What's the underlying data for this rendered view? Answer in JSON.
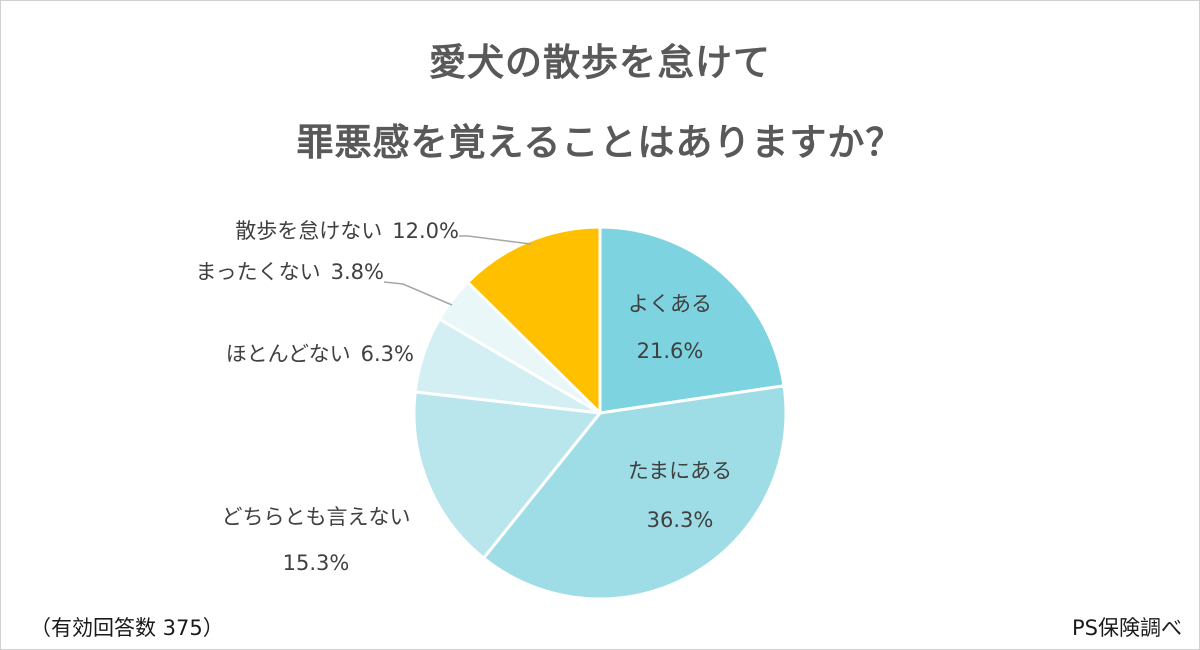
{
  "title_lines": [
    "愛犬の散歩を怠けて",
    "罪悪感を覚えることはありますか？"
  ],
  "respondents_note": "（有効回答数 375）",
  "source_note": "PS保険調べ",
  "colors": {
    "border": "#d0d0d0",
    "title": "#595959",
    "label": "#404040",
    "leader": "#a6a6a6",
    "slice_border": "#ffffff"
  },
  "chart_data": {
    "type": "pie",
    "title": "愛犬の散歩を怠けて罪悪感を覚えることはありますか？",
    "start_angle": "12 o'clock",
    "direction": "clockwise",
    "slices": [
      {
        "label": "よくある",
        "value": 21.6,
        "value_label": "21.6%",
        "color": "#7dd3df"
      },
      {
        "label": "たまにある",
        "value": 36.3,
        "value_label": "36.3%",
        "color": "#9fdde6"
      },
      {
        "label": "どちらとも言えない",
        "value": 15.3,
        "value_label": "15.3%",
        "color": "#b9e6ec"
      },
      {
        "label": "ほとんどない",
        "value": 6.3,
        "value_label": "6.3%",
        "color": "#d3eff3"
      },
      {
        "label": "まったくない",
        "value": 3.8,
        "value_label": "3.8%",
        "color": "#e9f7f9"
      },
      {
        "label": "散歩を怠けない",
        "value": 12.0,
        "value_label": "12.0%",
        "color": "#ffc000"
      }
    ]
  }
}
